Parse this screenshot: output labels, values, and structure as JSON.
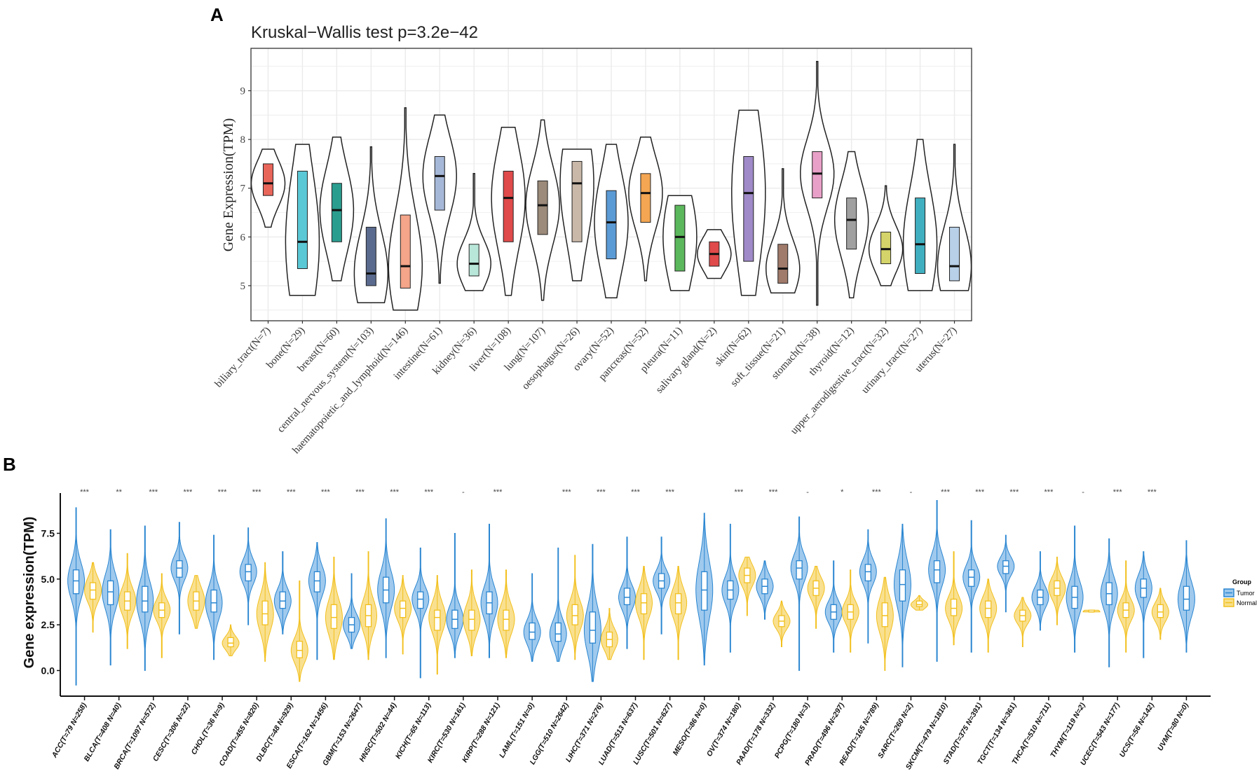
{
  "chart_data": [
    {
      "panel": "A",
      "type": "violin",
      "title": "Kruskal−Wallis test p=3.2e−42",
      "xlabel": "",
      "ylabel": "Gene Expression(TPM)",
      "ylim": [
        4.28,
        9.87
      ],
      "yticks": [
        5,
        6,
        7,
        8,
        9
      ],
      "grid": true,
      "categories": [
        {
          "label": "biliary_tract(N=7)",
          "stats": [
            6.2,
            6.85,
            7.1,
            7.5,
            7.8
          ],
          "color": "#e8655a"
        },
        {
          "label": "bone(N=29)",
          "stats": [
            4.8,
            5.35,
            5.9,
            7.35,
            7.9
          ],
          "color": "#5bc8d6"
        },
        {
          "label": "breast(N=60)",
          "stats": [
            5.1,
            5.9,
            6.55,
            7.1,
            8.05
          ],
          "color": "#2a9d8f"
        },
        {
          "label": "central_nervous_system(N=103)",
          "stats": [
            4.65,
            5.0,
            5.25,
            6.2,
            7.85
          ],
          "color": "#5a6a8e"
        },
        {
          "label": "haematopoietic_and_lymphoid(N=146)",
          "stats": [
            4.5,
            4.95,
            5.4,
            6.45,
            8.65
          ],
          "color": "#f4a58a"
        },
        {
          "label": "intestine(N=61)",
          "stats": [
            5.05,
            6.55,
            7.25,
            7.65,
            8.5
          ],
          "color": "#a6b8d8"
        },
        {
          "label": "kidney(N=36)",
          "stats": [
            4.9,
            5.2,
            5.45,
            5.85,
            7.3
          ],
          "color": "#b8e6d8"
        },
        {
          "label": "liver(N=108)",
          "stats": [
            4.8,
            5.9,
            6.8,
            7.35,
            8.25
          ],
          "color": "#e04a4a"
        },
        {
          "label": "lung(N=107)",
          "stats": [
            4.7,
            6.05,
            6.65,
            7.15,
            8.4
          ],
          "color": "#9c8a7a"
        },
        {
          "label": "oesophagus(N=26)",
          "stats": [
            5.1,
            5.9,
            7.1,
            7.55,
            7.8
          ],
          "color": "#c9b8a8"
        },
        {
          "label": "ovary(N=52)",
          "stats": [
            4.75,
            5.55,
            6.3,
            6.95,
            7.9
          ],
          "color": "#5b9bd5"
        },
        {
          "label": "pancreas(N=52)",
          "stats": [
            5.1,
            6.3,
            6.9,
            7.3,
            8.05
          ],
          "color": "#f4a652"
        },
        {
          "label": "pleura(N=11)",
          "stats": [
            4.9,
            5.3,
            6.0,
            6.65,
            6.85
          ],
          "color": "#5cb85c"
        },
        {
          "label": "salivary gland(N=2)",
          "stats": [
            5.15,
            5.4,
            5.65,
            5.9,
            6.15
          ],
          "color": "#e04a4a"
        },
        {
          "label": "skin(N=62)",
          "stats": [
            4.8,
            5.5,
            6.9,
            7.65,
            8.6
          ],
          "color": "#a08ac8"
        },
        {
          "label": "soft_tissue(N=21)",
          "stats": [
            4.85,
            5.05,
            5.35,
            5.85,
            7.4
          ],
          "color": "#a07a6a"
        },
        {
          "label": "stomach(N=38)",
          "stats": [
            4.6,
            6.8,
            7.3,
            7.75,
            9.6
          ],
          "color": "#e8a0c8"
        },
        {
          "label": "thyroid(N=12)",
          "stats": [
            4.75,
            5.75,
            6.35,
            6.8,
            7.75
          ],
          "color": "#a0a0a0"
        },
        {
          "label": "upper_aerodigestive_tract(N=32)",
          "stats": [
            5.0,
            5.45,
            5.75,
            6.1,
            7.05
          ],
          "color": "#d4d46a"
        },
        {
          "label": "urinary_tract(N=27)",
          "stats": [
            4.9,
            5.25,
            5.85,
            6.8,
            8.0
          ],
          "color": "#40b0c0"
        },
        {
          "label": "uterus(N=27)",
          "stats": [
            4.9,
            5.1,
            5.4,
            6.2,
            7.9
          ],
          "color": "#b8d0e8"
        }
      ]
    },
    {
      "panel": "B",
      "type": "violin",
      "title": "",
      "xlabel": "",
      "ylabel": "Gene expression(TPM)",
      "ylim": [
        -1.4,
        9.7
      ],
      "yticks": [
        "0.0",
        "2.5",
        "5.0",
        "7.5"
      ],
      "legend": {
        "title": "Group",
        "placement": "right",
        "entries": [
          {
            "name": "Tumor",
            "color": "#2a86d1"
          },
          {
            "name": "Normal",
            "color": "#f2c01e"
          }
        ]
      },
      "stats_order": [
        "min",
        "q1",
        "median",
        "q3",
        "max"
      ],
      "categories": [
        {
          "label": "ACC(T=79 N=258)",
          "sig": "***",
          "tumor": [
            -0.8,
            4.2,
            4.9,
            5.5,
            8.9
          ],
          "normal": [
            2.1,
            3.9,
            4.4,
            4.8,
            5.9
          ]
        },
        {
          "label": "BLCA(T=408 N=40)",
          "sig": "**",
          "tumor": [
            0.3,
            3.6,
            4.3,
            4.9,
            7.7
          ],
          "normal": [
            1.2,
            3.3,
            3.8,
            4.3,
            6.4
          ]
        },
        {
          "label": "BRCA(T=1097 N=572)",
          "sig": "***",
          "tumor": [
            0.0,
            3.2,
            3.8,
            4.6,
            7.9
          ],
          "normal": [
            0.7,
            2.9,
            3.3,
            3.7,
            5.3
          ]
        },
        {
          "label": "CESC(T=306 N=22)",
          "sig": "***",
          "tumor": [
            2.0,
            5.1,
            5.6,
            6.0,
            8.1
          ],
          "normal": [
            2.3,
            3.3,
            3.8,
            4.3,
            5.2
          ]
        },
        {
          "label": "CHOL(T=36 N=9)",
          "sig": "***",
          "tumor": [
            0.6,
            3.2,
            3.7,
            4.4,
            7.4
          ],
          "normal": [
            0.8,
            1.3,
            1.5,
            1.8,
            2.5
          ]
        },
        {
          "label": "COAD(T=455 N=820)",
          "sig": "***",
          "tumor": [
            2.5,
            4.9,
            5.4,
            5.8,
            7.8
          ],
          "normal": [
            0.5,
            2.5,
            3.1,
            3.8,
            5.9
          ]
        },
        {
          "label": "DLBC(T=48 N=929)",
          "sig": "***",
          "tumor": [
            2.0,
            3.4,
            3.8,
            4.3,
            6.5
          ],
          "normal": [
            -0.6,
            0.7,
            1.1,
            1.6,
            4.9
          ]
        },
        {
          "label": "ESCA(T=162 N=1456)",
          "sig": "***",
          "tumor": [
            0.6,
            4.3,
            4.9,
            5.4,
            7.0
          ],
          "normal": [
            0.6,
            2.3,
            2.9,
            3.6,
            6.2
          ]
        },
        {
          "label": "GBM(T=153 N=2647)",
          "sig": "***",
          "tumor": [
            1.2,
            2.1,
            2.5,
            2.9,
            5.3
          ],
          "normal": [
            0.6,
            2.4,
            3.0,
            3.6,
            6.5
          ]
        },
        {
          "label": "HNSC(T=502 N=44)",
          "sig": "***",
          "tumor": [
            0.7,
            3.7,
            4.4,
            5.1,
            8.3
          ],
          "normal": [
            0.9,
            2.9,
            3.4,
            3.8,
            5.2
          ]
        },
        {
          "label": "KICH(T=65 N=113)",
          "sig": "***",
          "tumor": [
            -0.4,
            3.4,
            3.9,
            4.3,
            6.7
          ],
          "normal": [
            -0.2,
            2.2,
            2.9,
            3.3,
            5.2
          ]
        },
        {
          "label": "KIRC(T=530 N=161)",
          "sig": "-",
          "tumor": [
            0.7,
            2.3,
            2.8,
            3.3,
            7.5
          ],
          "normal": [
            0.8,
            2.2,
            2.8,
            3.3,
            5.5
          ]
        },
        {
          "label": "KIRP(T=288 N=121)",
          "sig": "***",
          "tumor": [
            0.7,
            3.1,
            3.7,
            4.3,
            8.0
          ],
          "normal": [
            0.7,
            2.2,
            2.8,
            3.3,
            5.5
          ]
        },
        {
          "label": "LAML(T=151 N=0)",
          "sig": "",
          "tumor": [
            0.5,
            1.7,
            2.1,
            2.6,
            5.3
          ],
          "normal": null
        },
        {
          "label": "LGG(T=510 N=2642)",
          "sig": "***",
          "tumor": [
            0.5,
            1.6,
            2.0,
            2.6,
            6.7
          ],
          "normal": [
            0.6,
            2.5,
            3.0,
            3.6,
            6.3
          ]
        },
        {
          "label": "LIHC(T=371 N=276)",
          "sig": "***",
          "tumor": [
            -0.6,
            1.5,
            2.2,
            3.2,
            6.9
          ],
          "normal": [
            0.6,
            1.3,
            1.7,
            2.1,
            3.4
          ]
        },
        {
          "label": "LUAD(T=513 N=637)",
          "sig": "***",
          "tumor": [
            1.2,
            3.6,
            4.0,
            4.5,
            7.3
          ],
          "normal": [
            0.6,
            3.1,
            3.7,
            4.2,
            5.7
          ]
        },
        {
          "label": "LUSC(T=501 N=627)",
          "sig": "***",
          "tumor": [
            2.0,
            4.5,
            4.9,
            5.3,
            7.3
          ],
          "normal": [
            0.6,
            3.1,
            3.7,
            4.2,
            5.7
          ]
        },
        {
          "label": "MESO(T=86 N=0)",
          "sig": "",
          "tumor": [
            0.3,
            3.3,
            4.4,
            5.4,
            8.6
          ],
          "normal": null
        },
        {
          "label": "OV(T=374 N=180)",
          "sig": "***",
          "tumor": [
            1.0,
            3.9,
            4.4,
            4.9,
            8.0
          ],
          "normal": [
            3.0,
            4.8,
            5.2,
            5.6,
            6.2
          ]
        },
        {
          "label": "PAAD(T=178 N=332)",
          "sig": "***",
          "tumor": [
            2.8,
            4.2,
            4.6,
            5.0,
            6.0
          ],
          "normal": [
            1.3,
            2.4,
            2.7,
            3.0,
            3.8
          ]
        },
        {
          "label": "PCPG(T=180 N=3)",
          "sig": "-",
          "tumor": [
            0.0,
            5.0,
            5.6,
            6.0,
            8.4
          ],
          "normal": [
            2.3,
            4.1,
            4.5,
            4.9,
            5.7
          ]
        },
        {
          "label": "PRAD(T=496 N=297)",
          "sig": "*",
          "tumor": [
            1.0,
            2.8,
            3.2,
            3.6,
            6.0
          ],
          "normal": [
            1.0,
            2.8,
            3.2,
            3.6,
            5.5
          ]
        },
        {
          "label": "READ(T=165 N=789)",
          "sig": "***",
          "tumor": [
            1.5,
            4.9,
            5.4,
            5.8,
            7.7
          ],
          "normal": [
            0.0,
            2.4,
            3.0,
            3.7,
            5.1
          ]
        },
        {
          "label": "SARC(T=260 N=2)",
          "sig": "-",
          "tumor": [
            0.2,
            3.8,
            4.7,
            5.5,
            8.0
          ],
          "normal": [
            3.3,
            3.5,
            3.6,
            3.8,
            4.1
          ]
        },
        {
          "label": "SKCM(T=479 N=1810)",
          "sig": "***",
          "tumor": [
            0.5,
            4.8,
            5.5,
            6.0,
            9.3
          ],
          "normal": [
            1.4,
            3.0,
            3.4,
            3.9,
            6.5
          ]
        },
        {
          "label": "STAD(T=375 N=391)",
          "sig": "***",
          "tumor": [
            1.0,
            4.6,
            5.1,
            5.5,
            8.2
          ],
          "normal": [
            1.0,
            2.9,
            3.4,
            3.8,
            5.0
          ]
        },
        {
          "label": "TGCT(T=134 N=361)",
          "sig": "***",
          "tumor": [
            3.2,
            5.3,
            5.7,
            6.0,
            7.4
          ],
          "normal": [
            1.3,
            2.7,
            3.0,
            3.3,
            4.0
          ]
        },
        {
          "label": "THCA(T=510 N=711)",
          "sig": "***",
          "tumor": [
            2.2,
            3.6,
            4.0,
            4.4,
            6.5
          ],
          "normal": [
            2.5,
            4.1,
            4.5,
            4.9,
            6.2
          ]
        },
        {
          "label": "THYM(T=119 N=2)",
          "sig": "-",
          "tumor": [
            1.0,
            3.4,
            4.0,
            4.6,
            7.9
          ],
          "normal": [
            3.2,
            3.2,
            3.2,
            3.3,
            3.3
          ]
        },
        {
          "label": "UCEC(T=543 N=177)",
          "sig": "***",
          "tumor": [
            0.2,
            3.6,
            4.2,
            4.8,
            7.2
          ],
          "normal": [
            1.0,
            2.9,
            3.3,
            3.7,
            6.0
          ]
        },
        {
          "label": "UCS(T=56 N=142)",
          "sig": "***",
          "tumor": [
            0.7,
            4.0,
            4.5,
            5.0,
            6.5
          ],
          "normal": [
            1.7,
            2.9,
            3.2,
            3.6,
            4.5
          ]
        },
        {
          "label": "UVM(T=80 N=0)",
          "sig": "",
          "tumor": [
            1.0,
            3.3,
            3.9,
            4.6,
            7.1
          ],
          "normal": null
        }
      ]
    }
  ],
  "panel_labels": {
    "a": "A",
    "b": "B"
  }
}
